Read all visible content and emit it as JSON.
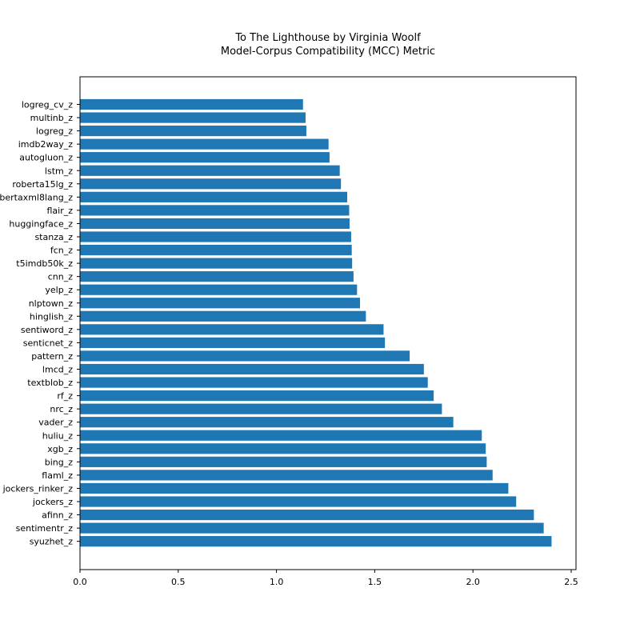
{
  "chart_data": {
    "type": "bar",
    "orientation": "horizontal",
    "title_lines": [
      "To The Lighthouse by Virginia Woolf",
      "Model-Corpus Compatibility (MCC) Metric"
    ],
    "xlabel": "",
    "ylabel": "",
    "xlim": [
      0,
      2.52
    ],
    "xticks": [
      "0.0",
      "0.5",
      "1.0",
      "1.5",
      "2.0",
      "2.5"
    ],
    "grid": false,
    "bar_color": "#1f77b4",
    "categories": [
      "logreg_cv_z",
      "multinb_z",
      "logreg_z",
      "imdb2way_z",
      "autogluon_z",
      "lstm_z",
      "roberta15lg_z",
      "robertaxml8lang_z",
      "flair_z",
      "huggingface_z",
      "stanza_z",
      "fcn_z",
      "t5imdb50k_z",
      "cnn_z",
      "yelp_z",
      "nlptown_z",
      "hinglish_z",
      "sentiword_z",
      "senticnet_z",
      "pattern_z",
      "lmcd_z",
      "textblob_z",
      "rf_z",
      "nrc_z",
      "vader_z",
      "huliu_z",
      "xgb_z",
      "bing_z",
      "flaml_z",
      "jockers_rinker_z",
      "jockers_z",
      "afinn_z",
      "sentimentr_z",
      "syuzhet_z"
    ],
    "values": [
      1.135,
      1.148,
      1.152,
      1.265,
      1.27,
      1.322,
      1.328,
      1.36,
      1.37,
      1.372,
      1.38,
      1.383,
      1.385,
      1.392,
      1.41,
      1.425,
      1.455,
      1.545,
      1.552,
      1.678,
      1.75,
      1.77,
      1.8,
      1.842,
      1.9,
      2.045,
      2.065,
      2.07,
      2.1,
      2.18,
      2.22,
      2.31,
      2.36,
      2.4
    ]
  }
}
